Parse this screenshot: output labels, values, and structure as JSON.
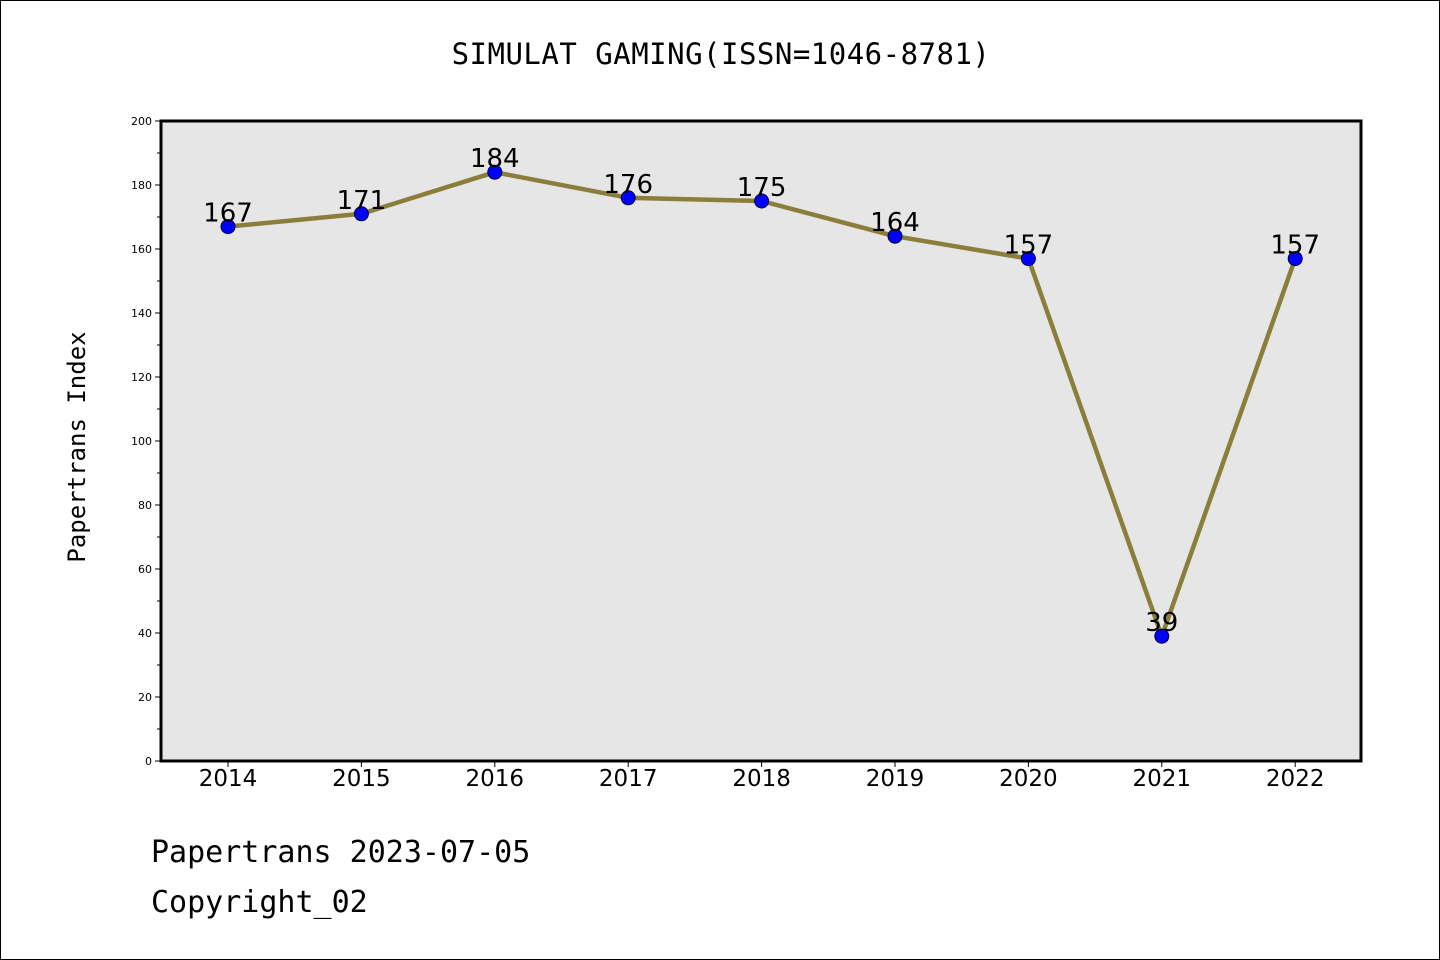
{
  "chart_data": {
    "type": "line",
    "title": "SIMULAT GAMING(ISSN=1046-8781)",
    "xlabel": "",
    "ylabel": "Papertrans Index",
    "categories": [
      "2014",
      "2015",
      "2016",
      "2017",
      "2018",
      "2019",
      "2020",
      "2021",
      "2022"
    ],
    "series": [
      {
        "values": [
          167,
          171,
          184,
          176,
          175,
          164,
          157,
          39,
          157
        ]
      }
    ],
    "data_labels": [
      "167",
      "171",
      "184",
      "176",
      "175",
      "164",
      "157",
      "39",
      "157"
    ],
    "ylim": [
      0,
      200
    ],
    "yticks": [
      0,
      20,
      40,
      60,
      80,
      100,
      120,
      140,
      160,
      180,
      200
    ],
    "grid": false,
    "legend": "none",
    "colors": {
      "line": "#8b7d3a",
      "marker": "#0000ff",
      "plot_background": "#e6e6e6",
      "frame": "#000000"
    }
  },
  "footer": {
    "line1": "Papertrans 2023-07-05",
    "line2": "Copyright_02"
  }
}
